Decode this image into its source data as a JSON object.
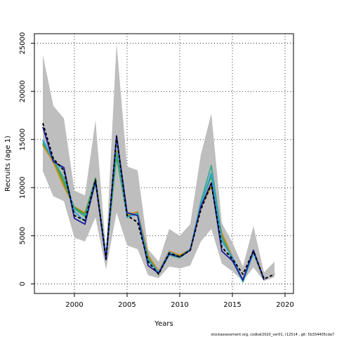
{
  "chart_data": {
    "type": "line",
    "xlabel": "Years",
    "ylabel": "Recruits (age 1)",
    "xlim": [
      1996.2,
      2020.8
    ],
    "ylim": [
      -1000,
      26000
    ],
    "xticks": [
      2000,
      2005,
      2010,
      2015,
      2020
    ],
    "yticks": [
      0,
      5000,
      10000,
      15000,
      20000,
      25000
    ],
    "grid": "dotted",
    "band_color": "#bebebe",
    "band": {
      "x": [
        1997,
        1998,
        1999,
        2000,
        2001,
        2002,
        2003,
        2004,
        2005,
        2006,
        2007,
        2008,
        2009,
        2010,
        2011,
        2012,
        2013,
        2014,
        2015,
        2016,
        2017,
        2018,
        2019
      ],
      "upper": [
        23800,
        18500,
        17200,
        9700,
        9200,
        17000,
        3500,
        25000,
        12200,
        11800,
        3600,
        2300,
        5700,
        5000,
        6200,
        13400,
        17700,
        6300,
        4300,
        1800,
        6000,
        1200,
        2300
      ],
      "lower": [
        11700,
        9100,
        8600,
        4800,
        4400,
        6900,
        1500,
        7400,
        4000,
        3600,
        900,
        600,
        1800,
        1600,
        1900,
        4400,
        5700,
        2100,
        1300,
        300,
        1700,
        300,
        700
      ]
    },
    "series": [
      {
        "color": "#000000",
        "dashed": true,
        "x": [
          1997,
          1998,
          1999,
          2000,
          2001,
          2002,
          2003,
          2004,
          2005,
          2006,
          2007,
          2008,
          2009,
          2010,
          2011,
          2012,
          2013,
          2014,
          2015,
          2016,
          2017,
          2018,
          2019
        ],
        "values": [
          16700,
          13000,
          11800,
          7100,
          6600,
          10800,
          2600,
          15300,
          7100,
          6400,
          2300,
          1000,
          3200,
          2800,
          3500,
          7700,
          10400,
          3800,
          2600,
          1000,
          3400,
          500,
          1000
        ]
      },
      {
        "color": "#1c1ca0",
        "x": [
          1997,
          1998,
          1999,
          2000,
          2001,
          2002,
          2003,
          2004,
          2005,
          2006,
          2007,
          2008,
          2009,
          2010,
          2011,
          2012,
          2013,
          2014,
          2015,
          2016,
          2017,
          2018
        ],
        "values": [
          16300,
          12700,
          12100,
          6800,
          6200,
          10700,
          2500,
          15400,
          7400,
          7100,
          1900,
          1100,
          3100,
          2800,
          3500,
          8000,
          10500,
          3400,
          2400,
          400,
          3500,
          400
        ]
      },
      {
        "color": "#2fa4d8",
        "x": [
          1997,
          1998,
          1999,
          2000,
          2001,
          2002,
          2003,
          2004,
          2005,
          2006,
          2007,
          2008,
          2009,
          2010,
          2011,
          2012,
          2013,
          2014,
          2015,
          2016,
          2017,
          2018
        ],
        "values": [
          15000,
          12800,
          11800,
          7500,
          6500,
          10500,
          2900,
          15000,
          7000,
          7200,
          2400,
          1200,
          3300,
          2800,
          3600,
          8200,
          11500,
          4400,
          2800,
          300,
          3200,
          600
        ]
      },
      {
        "color": "#3aa88a",
        "x": [
          1997,
          1998,
          1999,
          2000,
          2001,
          2002,
          2003,
          2004,
          2005,
          2006,
          2007,
          2008,
          2009,
          2010,
          2011,
          2012,
          2013,
          2014,
          2015,
          2016,
          2017,
          2018
        ],
        "values": [
          14800,
          12900,
          11000,
          7800,
          7000,
          10900,
          2700,
          13600,
          6900,
          7400,
          2500,
          1100,
          3000,
          2700,
          3500,
          8500,
          12300,
          4800,
          2500,
          200,
          3300,
          500
        ]
      },
      {
        "color": "#35a24a",
        "x": [
          1997,
          1998,
          1999,
          2000,
          2001,
          2002,
          2003,
          2004,
          2005,
          2006,
          2007,
          2008,
          2009,
          2010,
          2011,
          2012,
          2013,
          2014,
          2015,
          2016,
          2017,
          2018
        ],
        "values": [
          14600,
          13000,
          10600,
          7900,
          7200,
          11000,
          2800,
          13300,
          7000,
          7300,
          2700,
          1100,
          3100,
          2800,
          3500,
          8300,
          11200,
          4800,
          2600,
          200,
          3200,
          500
        ]
      },
      {
        "color": "#9a9a1a",
        "x": [
          1997,
          1998,
          1999,
          2000,
          2001,
          2002,
          2003,
          2004,
          2005,
          2006,
          2007,
          2008,
          2009,
          2010,
          2011,
          2012,
          2013,
          2014,
          2015,
          2016,
          2017,
          2018
        ],
        "values": [
          14500,
          12800,
          10300,
          8000,
          7300,
          10900,
          2800,
          13700,
          7100,
          7300,
          2800,
          1200,
          3300,
          2900,
          3600,
          8000,
          10200,
          5100,
          2700,
          200,
          3300,
          500
        ]
      },
      {
        "color": "#e08a2a",
        "x": [
          1997,
          1998,
          1999,
          2000,
          2001,
          2002,
          2003,
          2004,
          2005,
          2006,
          2007,
          2008,
          2009,
          2010,
          2011,
          2012,
          2013,
          2014,
          2015,
          2016,
          2017,
          2018
        ],
        "values": [
          14400,
          12600,
          10100,
          8000,
          7400,
          10600,
          2900,
          13800,
          7200,
          7500,
          3000,
          1300,
          3400,
          3000,
          3600,
          7900,
          10100,
          5300,
          2800,
          300,
          3400,
          600
        ]
      }
    ]
  },
  "footer": "stockassessment.org, codkat2020_ver01, r12514 , git: 5b334405cda7"
}
